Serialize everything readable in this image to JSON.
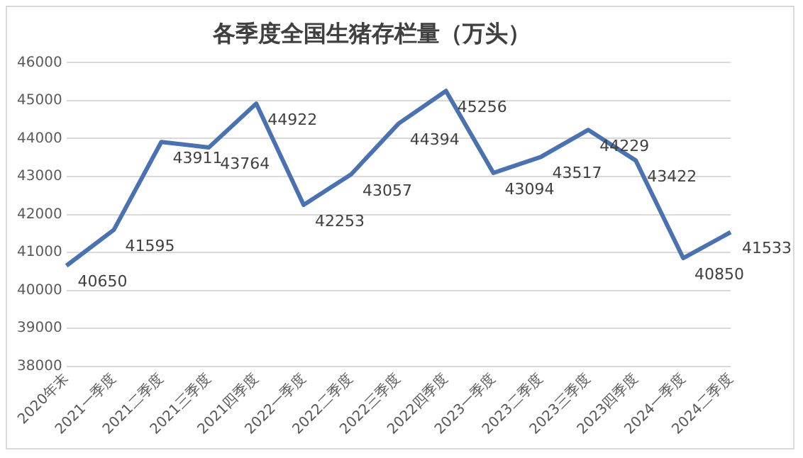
{
  "chart_data": {
    "type": "line",
    "title": "各季度全国生猪存栏量（万头）",
    "categories": [
      "2020年末",
      "2021一季度",
      "2021二季度",
      "2021三季度",
      "2021四季度",
      "2022一季度",
      "2022二季度",
      "2022三季度",
      "2022四季度",
      "2023一季度",
      "2023二季度",
      "2023三季度",
      "2023四季度",
      "2024一季度",
      "2024二季度"
    ],
    "series": [
      {
        "color": "#4a72b0",
        "values": [
          40650,
          41595,
          43911,
          43764,
          44922,
          42253,
          43057,
          44394,
          45256,
          43094,
          43517,
          44229,
          43422,
          40850,
          41533
        ]
      }
    ],
    "ylim": [
      38000,
      46000
    ],
    "yticks": [
      38000,
      39000,
      40000,
      41000,
      42000,
      43000,
      44000,
      45000,
      46000
    ],
    "grid": "y",
    "legend": false,
    "marker": "none",
    "line_style": "solid",
    "data_labels": true
  }
}
